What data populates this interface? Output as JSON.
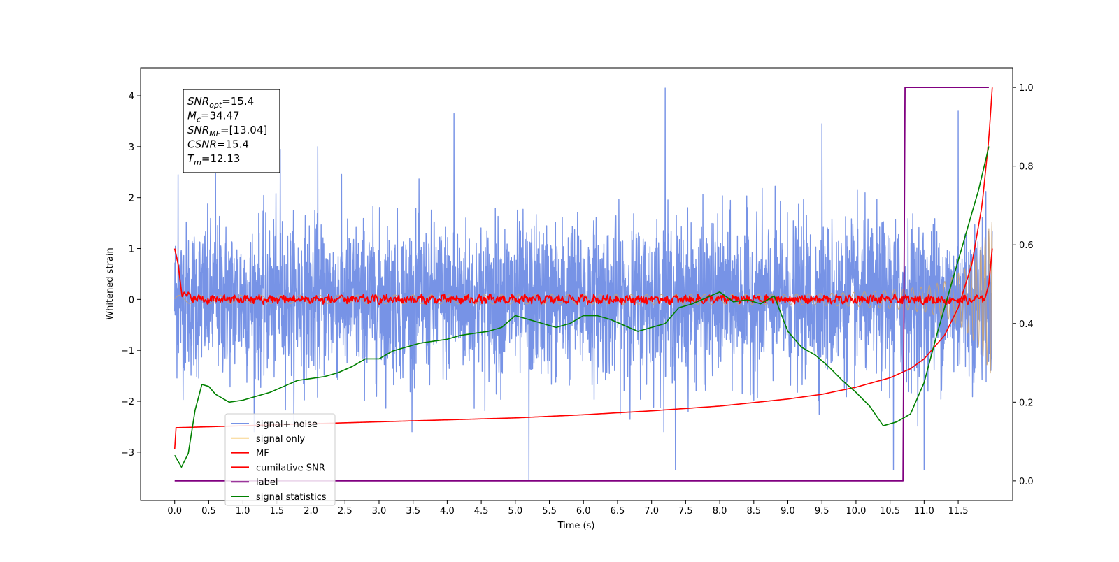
{
  "chart_data": {
    "type": "line",
    "xlabel": "Time (s)",
    "ylabel": "Whitened strain",
    "xlim": [
      -0.5,
      12.3
    ],
    "ylim": [
      -3.95,
      4.55
    ],
    "y2lim": [
      -0.05,
      1.05
    ],
    "x_ticks": [
      "0.0",
      "0.5",
      "1.0",
      "1.5",
      "2.0",
      "2.5",
      "3.0",
      "3.5",
      "4.0",
      "4.5",
      "5.0",
      "5.5",
      "6.0",
      "6.5",
      "7.0",
      "7.5",
      "8.0",
      "8.5",
      "9.0",
      "9.5",
      "10.0",
      "10.5",
      "11.0",
      "11.5"
    ],
    "y_ticks": [
      "4",
      "3",
      "2",
      "1",
      "0",
      "−1",
      "−2",
      "−3"
    ],
    "y2_ticks": [
      "1.0",
      "0.8",
      "0.6",
      "0.4",
      "0.2",
      "0.0"
    ],
    "info_box": {
      "lines": [
        {
          "var": "SNR",
          "sub": "opt",
          "value": "=15.4"
        },
        {
          "var": "M",
          "sub": "c",
          "value": "=34.47"
        },
        {
          "var": "SNR",
          "sub": "MF",
          "value": "=[13.04]"
        },
        {
          "var": "CSNR",
          "sub": "",
          "value": "=15.4"
        },
        {
          "var": "T",
          "sub": "m",
          "value": "=12.13"
        }
      ]
    },
    "legend": {
      "placement": "lower-left",
      "entries": [
        {
          "label": "signal+ noise",
          "color": "#7793e6"
        },
        {
          "label": "signal only",
          "color": "#f8d38a"
        },
        {
          "label": "MF",
          "color": "#ff0000"
        },
        {
          "label": "cumilative SNR",
          "color": "#ff0000"
        },
        {
          "label": "label",
          "color": "#800080"
        },
        {
          "label": "signal statistics",
          "color": "#008000"
        }
      ]
    },
    "series": [
      {
        "name": "signal+ noise",
        "axis": "left",
        "color": "#7793e6",
        "note_kind": "dense noise trace",
        "x_range": [
          0.0,
          12.0
        ],
        "typical_band": [
          -2.0,
          2.0
        ],
        "peaks": [
          [
            0.05,
            2.45
          ],
          [
            0.6,
            3.0
          ],
          [
            1.55,
            2.95
          ],
          [
            2.1,
            3.0
          ],
          [
            4.1,
            3.65
          ],
          [
            5.0,
            -1.1
          ],
          [
            5.2,
            -3.55
          ],
          [
            7.2,
            4.15
          ],
          [
            7.35,
            -3.35
          ],
          [
            9.5,
            3.45
          ],
          [
            10.55,
            -3.35
          ],
          [
            11.0,
            -3.35
          ],
          [
            11.5,
            3.7
          ]
        ]
      },
      {
        "name": "signal only",
        "axis": "left",
        "color": "#f8d38a",
        "note_kind": "chirp",
        "x": [
          0.0,
          9.0,
          10.0,
          10.5,
          11.0,
          11.3,
          11.6,
          11.8,
          11.9,
          12.0
        ],
        "envelope": [
          0.08,
          0.1,
          0.14,
          0.18,
          0.25,
          0.35,
          0.6,
          0.95,
          1.25,
          1.55
        ]
      },
      {
        "name": "MF",
        "axis": "left",
        "color": "#ff0000",
        "x": [
          0.0,
          0.05,
          0.1,
          0.2,
          0.4,
          1.0,
          3.0,
          6.0,
          9.0,
          11.0,
          11.7,
          11.9,
          11.95,
          12.0
        ],
        "values": [
          1.0,
          0.7,
          0.15,
          0.05,
          0.0,
          0.0,
          0.0,
          0.0,
          0.0,
          0.0,
          -0.02,
          0.05,
          0.3,
          1.0
        ]
      },
      {
        "name": "cumilative SNR",
        "axis": "right",
        "x": [
          0.0,
          0.02,
          1.0,
          2.0,
          3.0,
          4.0,
          5.0,
          6.0,
          7.0,
          8.0,
          9.0,
          9.5,
          10.0,
          10.5,
          10.8,
          11.0,
          11.3,
          11.5,
          11.7,
          11.85,
          11.95,
          12.0
        ],
        "values": [
          0.08,
          0.135,
          0.14,
          0.145,
          0.15,
          0.155,
          0.16,
          0.168,
          0.178,
          0.19,
          0.208,
          0.22,
          0.238,
          0.262,
          0.285,
          0.31,
          0.37,
          0.44,
          0.55,
          0.7,
          0.87,
          1.0
        ]
      },
      {
        "name": "label",
        "axis": "right",
        "x": [
          0.0,
          10.69,
          10.72,
          11.95
        ],
        "values": [
          0.0,
          0.0,
          1.0,
          1.0
        ]
      },
      {
        "name": "signal statistics",
        "axis": "right",
        "x": [
          0.0,
          0.1,
          0.2,
          0.3,
          0.4,
          0.5,
          0.6,
          0.8,
          1.0,
          1.2,
          1.4,
          1.6,
          1.8,
          2.0,
          2.2,
          2.4,
          2.6,
          2.8,
          3.0,
          3.2,
          3.4,
          3.6,
          3.8,
          4.0,
          4.2,
          4.4,
          4.6,
          4.8,
          5.0,
          5.2,
          5.4,
          5.6,
          5.8,
          6.0,
          6.2,
          6.4,
          6.6,
          6.8,
          7.0,
          7.2,
          7.4,
          7.6,
          7.8,
          8.0,
          8.2,
          8.4,
          8.6,
          8.8,
          9.0,
          9.2,
          9.4,
          9.6,
          9.8,
          10.0,
          10.2,
          10.4,
          10.6,
          10.8,
          11.0,
          11.2,
          11.4,
          11.6,
          11.8,
          11.95
        ],
        "values": [
          0.065,
          0.035,
          0.07,
          0.18,
          0.245,
          0.24,
          0.22,
          0.2,
          0.205,
          0.215,
          0.225,
          0.24,
          0.255,
          0.26,
          0.265,
          0.275,
          0.29,
          0.31,
          0.31,
          0.33,
          0.34,
          0.35,
          0.355,
          0.36,
          0.37,
          0.375,
          0.38,
          0.39,
          0.42,
          0.41,
          0.4,
          0.39,
          0.4,
          0.42,
          0.42,
          0.41,
          0.395,
          0.38,
          0.39,
          0.4,
          0.44,
          0.45,
          0.465,
          0.48,
          0.455,
          0.46,
          0.45,
          0.47,
          0.38,
          0.34,
          0.32,
          0.29,
          0.255,
          0.225,
          0.19,
          0.14,
          0.15,
          0.17,
          0.25,
          0.38,
          0.5,
          0.62,
          0.74,
          0.85
        ]
      }
    ]
  }
}
